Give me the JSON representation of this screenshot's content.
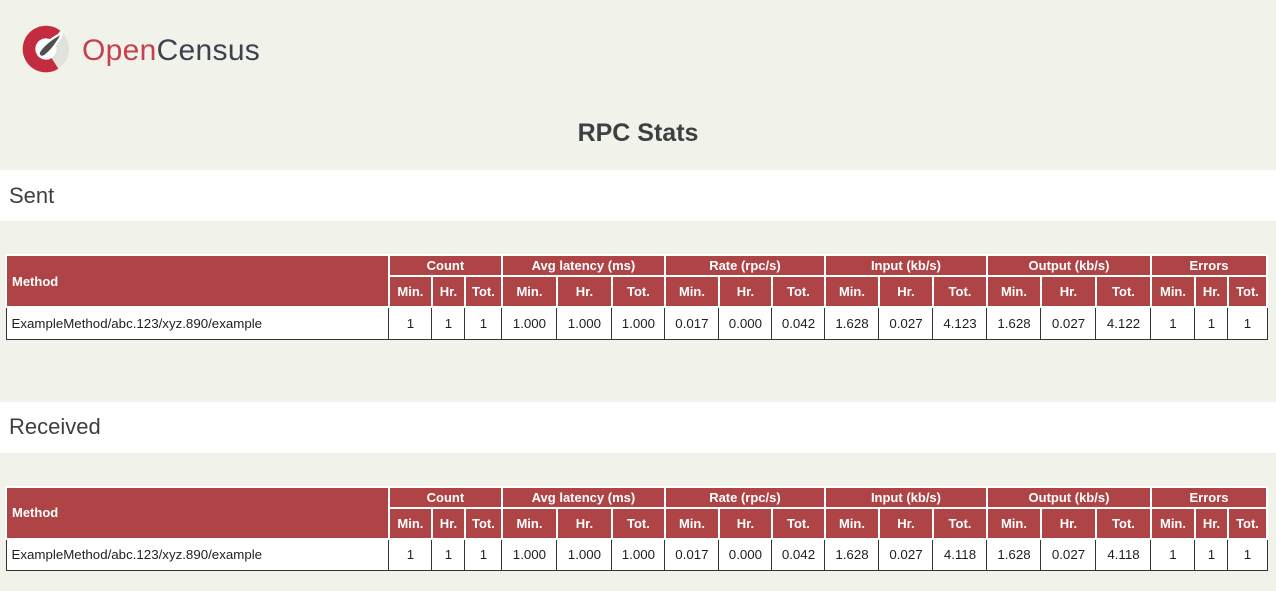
{
  "brand": {
    "name_primary": "Open",
    "name_secondary": "Census",
    "logo_icon": "gauge-icon",
    "color_primary": "#c5414e",
    "color_secondary": "#3b4351",
    "logo_ring_red": "#c32c3e",
    "logo_ring_gray": "#e2e2dd",
    "logo_needle": "#4e4e4e"
  },
  "page": {
    "title": "RPC Stats",
    "background_color": "#f1f2ea",
    "table_header_color": "#ae4446"
  },
  "table_structure": {
    "method_label": "Method",
    "stat_groups": [
      {
        "label": "Count"
      },
      {
        "label": "Avg latency (ms)"
      },
      {
        "label": "Rate (rpc/s)"
      },
      {
        "label": "Input (kb/s)"
      },
      {
        "label": "Output (kb/s)"
      },
      {
        "label": "Errors"
      }
    ],
    "interval_labels": [
      "Min.",
      "Hr.",
      "Tot."
    ]
  },
  "sections": [
    {
      "label": "Sent",
      "rows": [
        {
          "method": "ExampleMethod/abc.123/xyz.890/example",
          "values": [
            "1",
            "1",
            "1",
            "1.000",
            "1.000",
            "1.000",
            "0.017",
            "0.000",
            "0.042",
            "1.628",
            "0.027",
            "4.123",
            "1.628",
            "0.027",
            "4.122",
            "1",
            "1",
            "1"
          ]
        }
      ]
    },
    {
      "label": "Received",
      "rows": [
        {
          "method": "ExampleMethod/abc.123/xyz.890/example",
          "values": [
            "1",
            "1",
            "1",
            "1.000",
            "1.000",
            "1.000",
            "0.017",
            "0.000",
            "0.042",
            "1.628",
            "0.027",
            "4.118",
            "1.628",
            "0.027",
            "4.118",
            "1",
            "1",
            "1"
          ]
        }
      ]
    }
  ]
}
